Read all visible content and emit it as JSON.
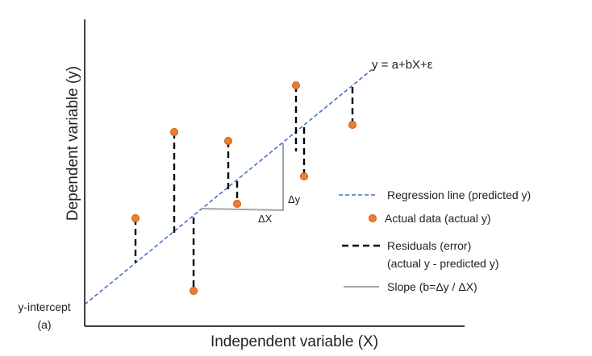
{
  "labels": {
    "equation": "y = a+bX+ε",
    "y_axis": "Dependent variable (y)",
    "x_axis": "Independent variable (X)",
    "intercept_line1": "y-intercept",
    "intercept_line2": "(a)",
    "delta_x": "ΔX",
    "delta_y": "Δy"
  },
  "legend": {
    "regression": "Regression line (predicted y)",
    "actual": "Actual data (actual y)",
    "residuals_line1": "Residuals (error)",
    "residuals_line2": "(actual y - predicted y)",
    "slope": "Slope (b=Δy / ΔX)"
  },
  "colors": {
    "regression_line": "#4472c4",
    "data_point": "#ed7d31",
    "data_point_stroke": "#c55a11",
    "residual": "#000000",
    "slope": "#a5a5a5",
    "axis": "#000000"
  }
}
